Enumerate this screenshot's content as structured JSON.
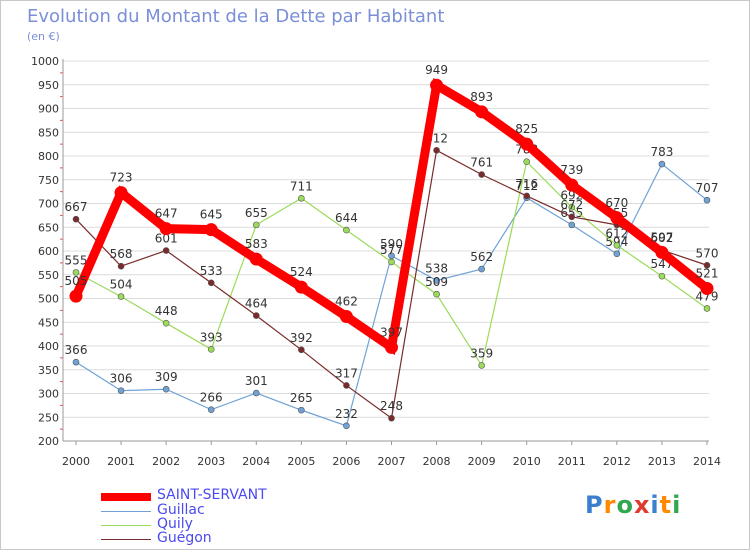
{
  "title": "Evolution du Montant de la Dette par Habitant",
  "unit": "(en €)",
  "logo": {
    "text": "Proxiti",
    "colors": [
      "#3a7fd0",
      "#ff8a00",
      "#2fa84f",
      "#e03a2f"
    ]
  },
  "chart_data": {
    "type": "line",
    "title": "Evolution du Montant de la Dette par Habitant",
    "ylabel": "(en €)",
    "xlabel": "",
    "ylim": [
      200,
      1000
    ],
    "yticks": [
      200,
      250,
      300,
      350,
      400,
      450,
      500,
      550,
      600,
      650,
      700,
      750,
      800,
      850,
      900,
      950,
      1000
    ],
    "grid": true,
    "legend": "bottom-left",
    "x": [
      "2000",
      "2001",
      "2002",
      "2003",
      "2004",
      "2005",
      "2006",
      "2007",
      "2008",
      "2009",
      "2010",
      "2011",
      "2012",
      "2013",
      "2014"
    ],
    "series": [
      {
        "name": "SAINT-SERVANT",
        "color": "#ff0000",
        "highlight": true,
        "values": [
          505,
          723,
          647,
          645,
          583,
          524,
          462,
          397,
          949,
          893,
          825,
          739,
          670,
          597,
          521
        ]
      },
      {
        "name": "Guillac",
        "color": "#6fa2d6",
        "values": [
          366,
          306,
          309,
          266,
          301,
          265,
          232,
          590,
          538,
          562,
          712,
          655,
          594,
          783,
          707
        ]
      },
      {
        "name": "Quily",
        "color": "#9bdb5a",
        "values": [
          555,
          504,
          448,
          393,
          655,
          711,
          644,
          577,
          509,
          359,
          788,
          692,
          612,
          547,
          479
        ]
      },
      {
        "name": "Guégon",
        "color": "#7a2a2a",
        "values": [
          667,
          568,
          601,
          533,
          464,
          392,
          317,
          248,
          812,
          761,
          716,
          672,
          655,
          602,
          570
        ]
      }
    ]
  }
}
